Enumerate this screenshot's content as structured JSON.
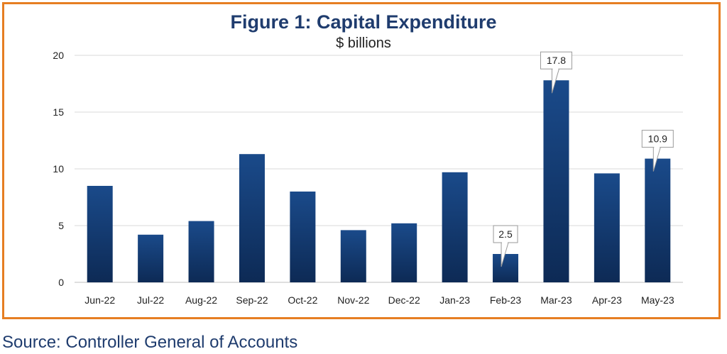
{
  "chart_data": {
    "type": "bar",
    "title": "Figure 1: Capital Expenditure",
    "subtitle": "$ billions",
    "categories": [
      "Jun-22",
      "Jul-22",
      "Aug-22",
      "Sep-22",
      "Oct-22",
      "Nov-22",
      "Dec-22",
      "Jan-23",
      "Feb-23",
      "Mar-23",
      "Apr-23",
      "May-23"
    ],
    "values": [
      8.5,
      4.2,
      5.4,
      11.3,
      8.0,
      4.6,
      5.2,
      9.7,
      2.5,
      17.8,
      9.6,
      10.9
    ],
    "data_labels": {
      "Feb-23": "2.5",
      "Mar-23": "17.8",
      "May-23": "10.9"
    },
    "ylim": [
      0,
      20
    ],
    "yticks": [
      0,
      5,
      10,
      15,
      20
    ],
    "grid": true,
    "bar_color": "#1a4a8a",
    "bar_color_dark": "#0d2a55"
  },
  "source": "Source: Controller General of Accounts",
  "colors": {
    "border": "#e67e22",
    "title": "#1f3c6e"
  }
}
